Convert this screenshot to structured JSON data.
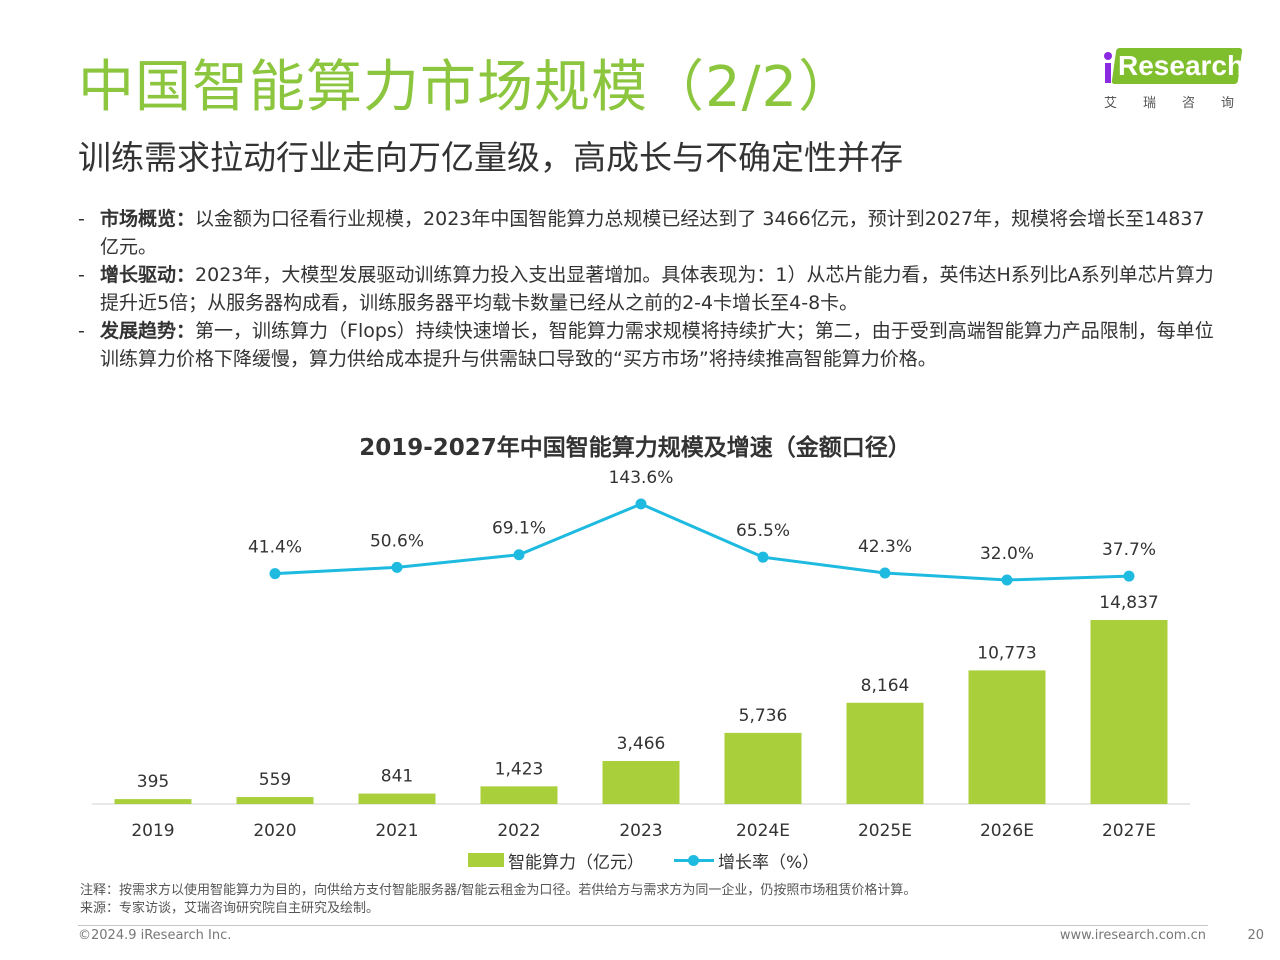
{
  "header": {
    "title": "中国智能算力市场规模（2/2）",
    "subtitle": "训练需求拉动行业走向万亿量级，高成长与不确定性并存"
  },
  "logo": {
    "brand_i": "i",
    "brand_rest": "Research",
    "sub": "艾瑞咨询"
  },
  "bullets": [
    {
      "dash": "-",
      "label": "市场概览：",
      "text": "以金额为口径看行业规模，2023年中国智能算力总规模已经达到了 3466亿元，预计到2027年，规模将会增长至14837亿元。"
    },
    {
      "dash": "-",
      "label": "增长驱动：",
      "text": "2023年，大模型发展驱动训练算力投入支出显著增加。具体表现为：1）从芯片能力看，英伟达H系列比A系列单芯片算力提升近5倍；从服务器构成看，训练服务器平均载卡数量已经从之前的2-4卡增长至4-8卡。"
    },
    {
      "dash": "-",
      "label": "发展趋势：",
      "text": "第一，训练算力（Flops）持续快速增长，智能算力需求规模将持续扩大；第二，由于受到高端智能算力产品限制，每单位训练算力价格下降缓慢，算力供给成本提升与供需缺口导致的“买方市场”将持续推高智能算力价格。"
    }
  ],
  "chart_data": {
    "type": "bar+line",
    "title": "2019-2027年中国智能算力规模及增速（金额口径）",
    "categories": [
      "2019",
      "2020",
      "2021",
      "2022",
      "2023",
      "2024E",
      "2025E",
      "2026E",
      "2027E"
    ],
    "series": [
      {
        "name": "智能算力（亿元）",
        "type": "bar",
        "color": "#a9cf3a",
        "values": [
          395,
          559,
          841,
          1423,
          3466,
          5736,
          8164,
          10773,
          14837
        ],
        "labels": [
          "395",
          "559",
          "841",
          "1,423",
          "3,466",
          "5,736",
          "8,164",
          "10,773",
          "14,837"
        ]
      },
      {
        "name": "增长率（%）",
        "type": "line",
        "color": "#1ebae0",
        "values": [
          null,
          41.4,
          50.6,
          69.1,
          143.6,
          65.5,
          42.3,
          32.0,
          37.7
        ],
        "labels": [
          "",
          "41.4%",
          "50.6%",
          "69.1%",
          "143.6%",
          "65.5%",
          "42.3%",
          "32.0%",
          "37.7%"
        ]
      }
    ],
    "legend_position": "bottom",
    "grid": false
  },
  "footer": {
    "note": "注释：按需求方以使用智能算力为目的，向供给方支付智能服务器/智能云租金为口径。若供给方与需求方为同一企业，仍按照市场租赁价格计算。",
    "source": "来源：专家访谈，艾瑞咨询研究院自主研究及绘制。",
    "copyright": "©2024.9 iResearch Inc.",
    "website": "www.iresearch.com.cn",
    "page": "20"
  }
}
